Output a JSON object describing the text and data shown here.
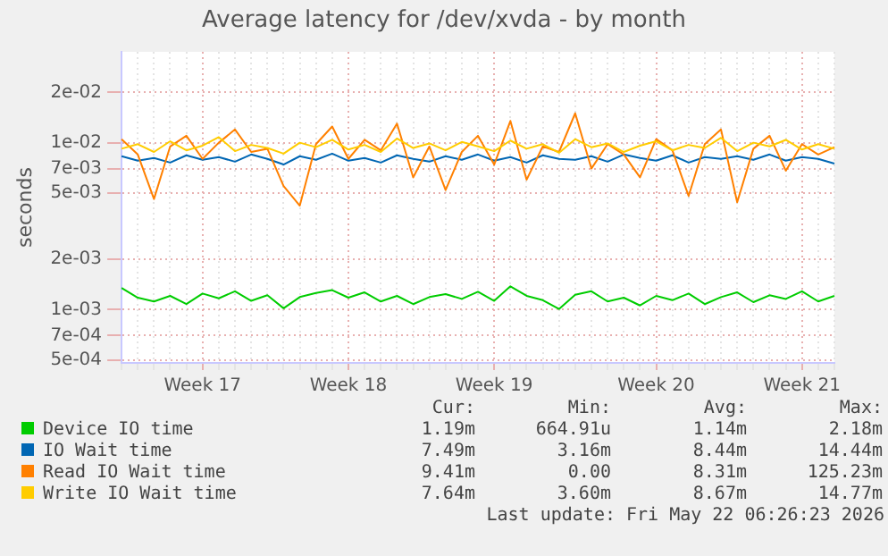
{
  "chart_data": {
    "type": "line",
    "title": "Average latency for /dev/xvda - by month",
    "ylabel": "seconds",
    "log": true,
    "grid": true,
    "legend": "bottom",
    "marker": "none",
    "line_style": "solid",
    "categories": [
      null,
      null,
      null,
      null,
      null,
      "Week 17",
      null,
      null,
      null,
      null,
      null,
      null,
      null,
      null,
      "Week 18",
      null,
      null,
      null,
      null,
      null,
      null,
      null,
      null,
      "Week 19",
      null,
      null,
      null,
      null,
      null,
      null,
      null,
      null,
      null,
      "Week 20",
      null,
      null,
      null,
      null,
      null,
      null,
      null,
      null,
      "Week 21",
      null,
      null
    ],
    "ylim": [
      0.00048,
      0.035
    ],
    "yticks": [
      {
        "value": 0.0005,
        "label": "5e-04"
      },
      {
        "value": 0.0007,
        "label": "7e-04"
      },
      {
        "value": 0.001,
        "label": "1e-03"
      },
      {
        "value": 0.002,
        "label": "2e-03"
      },
      {
        "value": 0.005,
        "label": "5e-03"
      },
      {
        "value": 0.007,
        "label": "7e-03"
      },
      {
        "value": 0.01,
        "label": "1e-02"
      },
      {
        "value": 0.02,
        "label": "2e-02"
      }
    ],
    "series": [
      {
        "name": "Device IO time",
        "color": "#00cc00",
        "values": [
          0.00135,
          0.00118,
          0.00112,
          0.00121,
          0.00108,
          0.00125,
          0.00117,
          0.00129,
          0.00113,
          0.00122,
          0.00102,
          0.00119,
          0.00126,
          0.00131,
          0.00118,
          0.00127,
          0.00112,
          0.00121,
          0.00108,
          0.00119,
          0.00124,
          0.00116,
          0.00128,
          0.00113,
          0.00138,
          0.00121,
          0.00114,
          0.00101,
          0.00123,
          0.00129,
          0.00112,
          0.00118,
          0.00106,
          0.00121,
          0.00114,
          0.00125,
          0.00108,
          0.00119,
          0.00127,
          0.00111,
          0.00122,
          0.00116,
          0.00129,
          0.00112,
          0.00121
        ]
      },
      {
        "name": "IO Wait time",
        "color": "#0066b3",
        "values": [
          0.0083,
          0.0078,
          0.0081,
          0.0076,
          0.0084,
          0.0079,
          0.0082,
          0.0077,
          0.0085,
          0.008,
          0.0074,
          0.0083,
          0.0079,
          0.0086,
          0.0078,
          0.0081,
          0.0076,
          0.0084,
          0.008,
          0.0077,
          0.0083,
          0.0079,
          0.0085,
          0.0078,
          0.0082,
          0.0076,
          0.0084,
          0.008,
          0.0079,
          0.0083,
          0.0077,
          0.0085,
          0.0081,
          0.0078,
          0.0084,
          0.0076,
          0.0082,
          0.008,
          0.0083,
          0.0079,
          0.0085,
          0.0078,
          0.0082,
          0.008,
          0.0075
        ]
      },
      {
        "name": "Read IO Wait time",
        "color": "#ff8000",
        "values": [
          0.0105,
          0.0085,
          0.0046,
          0.0095,
          0.011,
          0.008,
          0.01,
          0.012,
          0.0088,
          0.0092,
          0.0055,
          0.0042,
          0.0098,
          0.0125,
          0.008,
          0.0104,
          0.009,
          0.013,
          0.0062,
          0.0095,
          0.0052,
          0.0088,
          0.011,
          0.0074,
          0.0135,
          0.006,
          0.0095,
          0.0088,
          0.015,
          0.007,
          0.0098,
          0.0085,
          0.0062,
          0.0105,
          0.009,
          0.0048,
          0.0098,
          0.012,
          0.0044,
          0.0092,
          0.011,
          0.0068,
          0.0098,
          0.0085,
          0.0094
        ]
      },
      {
        "name": "Write IO Wait time",
        "color": "#ffcc00",
        "values": [
          0.0092,
          0.0098,
          0.0088,
          0.0102,
          0.009,
          0.0096,
          0.0108,
          0.0089,
          0.0097,
          0.0093,
          0.0086,
          0.01,
          0.0094,
          0.0104,
          0.0091,
          0.0097,
          0.0088,
          0.0106,
          0.0093,
          0.0099,
          0.009,
          0.0101,
          0.0095,
          0.0089,
          0.0103,
          0.0092,
          0.0098,
          0.0087,
          0.0105,
          0.0094,
          0.0099,
          0.0088,
          0.0096,
          0.0102,
          0.009,
          0.0097,
          0.0093,
          0.0107,
          0.0089,
          0.01,
          0.0095,
          0.0104,
          0.0091,
          0.0098,
          0.0092
        ]
      }
    ],
    "annotations": [
      "Cur:",
      "Min:",
      "Avg:",
      "Max:",
      "1.19m",
      "664.91u",
      "1.14m",
      "2.18m",
      "7.49m",
      "3.16m",
      "8.44m",
      "14.44m",
      "9.41m",
      "0.00",
      "8.31m",
      "125.23m",
      "7.64m",
      "3.60m",
      "8.67m",
      "14.77m",
      "Last update: Fri May 22 06:26:23 2026"
    ]
  }
}
